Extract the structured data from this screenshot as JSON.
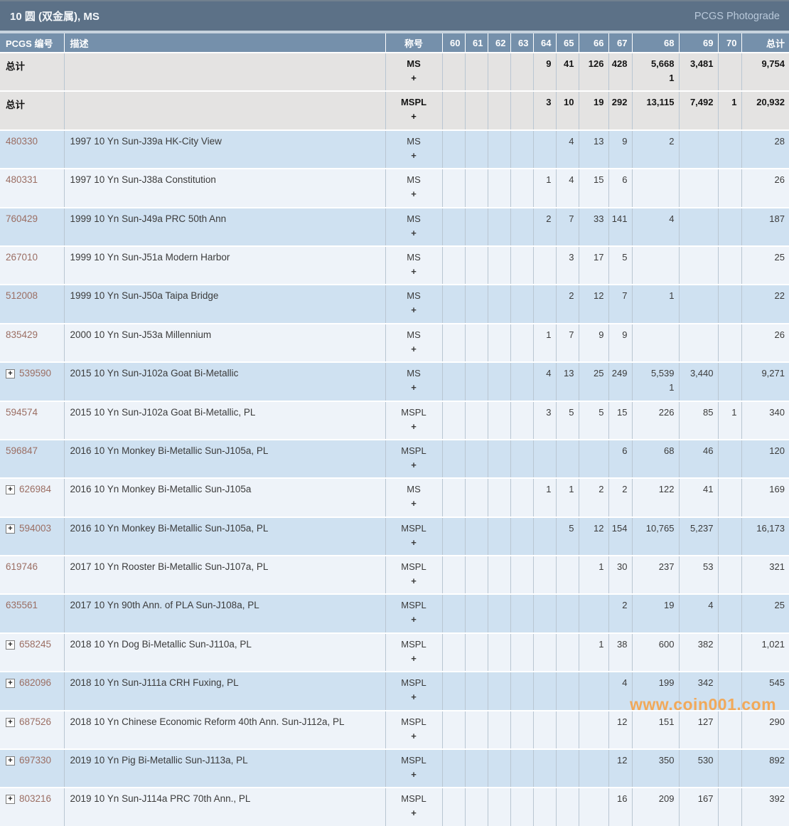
{
  "title_bar": {
    "title": "10 圆 (双金属), MS",
    "photograde_link": "PCGS Photograde"
  },
  "watermark": "www.coin001.com",
  "colors": {
    "title_bar_bg": "#5c7187",
    "header_bg": "#7590ab",
    "row_blue": "#cfe1f1",
    "row_light": "#eef3f9",
    "row_summary": "#e4e3e2",
    "pcgs_link": "#9b6e63",
    "watermark_orange": "#f79f40"
  },
  "table": {
    "headers": [
      "PCGS 编号",
      "描述",
      "称号",
      "60",
      "61",
      "62",
      "63",
      "64",
      "65",
      "66",
      "67",
      "68",
      "69",
      "70",
      "总计"
    ],
    "plus_symbol": "+",
    "rows": [
      {
        "type": "summary",
        "expand": false,
        "pcgs": "总计",
        "desc": "",
        "grade": "MS",
        "counts": [
          "",
          "",
          "",
          "",
          "9",
          "41",
          "126",
          "428",
          "5,668",
          "3,481",
          "",
          "9,754"
        ],
        "plus_counts": [
          "",
          "",
          "",
          "",
          "",
          "",
          "",
          "",
          "1",
          "",
          "",
          ""
        ]
      },
      {
        "type": "summary",
        "expand": false,
        "pcgs": "总计",
        "desc": "",
        "grade": "MSPL",
        "counts": [
          "",
          "",
          "",
          "",
          "3",
          "10",
          "19",
          "292",
          "13,115",
          "7,492",
          "1",
          "20,932"
        ]
      },
      {
        "type": "blue",
        "expand": false,
        "pcgs": "480330",
        "desc": "1997 10 Yn Sun-J39a HK-City View",
        "grade": "MS",
        "counts": [
          "",
          "",
          "",
          "",
          "",
          "4",
          "13",
          "9",
          "2",
          "",
          "",
          "28"
        ]
      },
      {
        "type": "light",
        "expand": false,
        "pcgs": "480331",
        "desc": "1997 10 Yn Sun-J38a Constitution",
        "grade": "MS",
        "counts": [
          "",
          "",
          "",
          "",
          "1",
          "4",
          "15",
          "6",
          "",
          "",
          "",
          "26"
        ]
      },
      {
        "type": "blue",
        "expand": false,
        "pcgs": "760429",
        "desc": "1999 10 Yn Sun-J49a PRC 50th Ann",
        "grade": "MS",
        "counts": [
          "",
          "",
          "",
          "",
          "2",
          "7",
          "33",
          "141",
          "4",
          "",
          "",
          "187"
        ]
      },
      {
        "type": "light",
        "expand": false,
        "pcgs": "267010",
        "desc": "1999 10 Yn Sun-J51a Modern Harbor",
        "grade": "MS",
        "counts": [
          "",
          "",
          "",
          "",
          "",
          "3",
          "17",
          "5",
          "",
          "",
          "",
          "25"
        ]
      },
      {
        "type": "blue",
        "expand": false,
        "pcgs": "512008",
        "desc": "1999 10 Yn Sun-J50a Taipa Bridge",
        "grade": "MS",
        "counts": [
          "",
          "",
          "",
          "",
          "",
          "2",
          "12",
          "7",
          "1",
          "",
          "",
          "22"
        ]
      },
      {
        "type": "light",
        "expand": false,
        "pcgs": "835429",
        "desc": "2000 10 Yn Sun-J53a Millennium",
        "grade": "MS",
        "counts": [
          "",
          "",
          "",
          "",
          "1",
          "7",
          "9",
          "9",
          "",
          "",
          "",
          "26"
        ]
      },
      {
        "type": "blue",
        "expand": true,
        "pcgs": "539590",
        "desc": "2015 10 Yn Sun-J102a Goat Bi-Metallic",
        "grade": "MS",
        "counts": [
          "",
          "",
          "",
          "",
          "4",
          "13",
          "25",
          "249",
          "5,539",
          "3,440",
          "",
          "9,271"
        ],
        "plus_counts": [
          "",
          "",
          "",
          "",
          "",
          "",
          "",
          "",
          "1",
          "",
          "",
          ""
        ]
      },
      {
        "type": "light",
        "expand": false,
        "pcgs": "594574",
        "desc": "2015 10 Yn Sun-J102a Goat Bi-Metallic, PL",
        "grade": "MSPL",
        "counts": [
          "",
          "",
          "",
          "",
          "3",
          "5",
          "5",
          "15",
          "226",
          "85",
          "1",
          "340"
        ]
      },
      {
        "type": "blue",
        "expand": false,
        "pcgs": "596847",
        "desc": "2016 10 Yn Monkey Bi-Metallic Sun-J105a, PL",
        "grade": "MSPL",
        "counts": [
          "",
          "",
          "",
          "",
          "",
          "",
          "",
          "6",
          "68",
          "46",
          "",
          "120"
        ]
      },
      {
        "type": "light",
        "expand": true,
        "pcgs": "626984",
        "desc": "2016 10 Yn Monkey Bi-Metallic Sun-J105a",
        "grade": "MS",
        "counts": [
          "",
          "",
          "",
          "",
          "1",
          "1",
          "2",
          "2",
          "122",
          "41",
          "",
          "169"
        ]
      },
      {
        "type": "blue",
        "expand": true,
        "pcgs": "594003",
        "desc": "2016 10 Yn Monkey Bi-Metallic Sun-J105a, PL",
        "grade": "MSPL",
        "counts": [
          "",
          "",
          "",
          "",
          "",
          "5",
          "12",
          "154",
          "10,765",
          "5,237",
          "",
          "16,173"
        ]
      },
      {
        "type": "light",
        "expand": false,
        "pcgs": "619746",
        "desc": "2017 10 Yn Rooster Bi-Metallic Sun-J107a, PL",
        "grade": "MSPL",
        "counts": [
          "",
          "",
          "",
          "",
          "",
          "",
          "1",
          "30",
          "237",
          "53",
          "",
          "321"
        ]
      },
      {
        "type": "blue",
        "expand": false,
        "pcgs": "635561",
        "desc": "2017 10 Yn 90th Ann. of PLA Sun-J108a, PL",
        "grade": "MSPL",
        "counts": [
          "",
          "",
          "",
          "",
          "",
          "",
          "",
          "2",
          "19",
          "4",
          "",
          "25"
        ]
      },
      {
        "type": "light",
        "expand": true,
        "pcgs": "658245",
        "desc": "2018 10 Yn Dog Bi-Metallic Sun-J110a, PL",
        "grade": "MSPL",
        "counts": [
          "",
          "",
          "",
          "",
          "",
          "",
          "1",
          "38",
          "600",
          "382",
          "",
          "1,021"
        ]
      },
      {
        "type": "blue",
        "expand": true,
        "pcgs": "682096",
        "desc": "2018 10 Yn Sun-J111a CRH Fuxing, PL",
        "grade": "MSPL",
        "counts": [
          "",
          "",
          "",
          "",
          "",
          "",
          "",
          "4",
          "199",
          "342",
          "",
          "545"
        ]
      },
      {
        "type": "light",
        "expand": true,
        "pcgs": "687526",
        "desc": "2018 10 Yn Chinese Economic Reform 40th Ann. Sun-J112a, PL",
        "grade": "MSPL",
        "counts": [
          "",
          "",
          "",
          "",
          "",
          "",
          "",
          "12",
          "151",
          "127",
          "",
          "290"
        ]
      },
      {
        "type": "blue",
        "expand": true,
        "pcgs": "697330",
        "desc": "2019 10 Yn Pig Bi-Metallic Sun-J113a, PL",
        "grade": "MSPL",
        "counts": [
          "",
          "",
          "",
          "",
          "",
          "",
          "",
          "12",
          "350",
          "530",
          "",
          "892"
        ]
      },
      {
        "type": "light",
        "expand": true,
        "pcgs": "803216",
        "desc": "2019 10 Yn Sun-J114a PRC 70th Ann., PL",
        "grade": "MSPL",
        "counts": [
          "",
          "",
          "",
          "",
          "",
          "",
          "",
          "16",
          "209",
          "167",
          "",
          "392"
        ]
      }
    ]
  }
}
